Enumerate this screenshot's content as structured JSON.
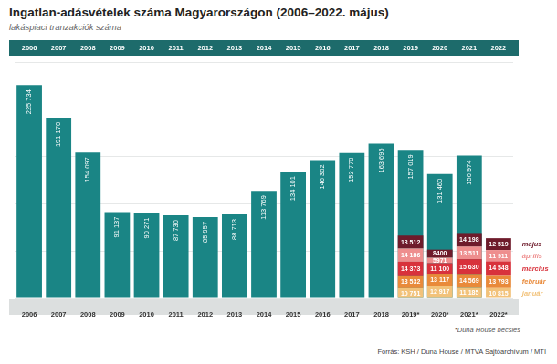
{
  "chart_data": {
    "type": "bar",
    "title": "Ingatlan-adásvételek száma Magyarországon (2006–2022. május)",
    "subtitle": "lakáspiaci tranzakciók száma",
    "categories": [
      "2006",
      "2007",
      "2008",
      "2009",
      "2010",
      "2011",
      "2012",
      "2013",
      "2014",
      "2015",
      "2016",
      "2017",
      "2018",
      "2019*",
      "2020*",
      "2021*",
      "2022*"
    ],
    "header_labels": [
      "2006",
      "2007",
      "2008",
      "2009",
      "2010",
      "2011",
      "2012",
      "2013",
      "2014",
      "2015",
      "2016",
      "2017",
      "2018",
      "2019",
      "2020",
      "2021",
      "2022"
    ],
    "series": [
      {
        "name": "január",
        "color": "#f2c27a",
        "values": [
          null,
          null,
          null,
          null,
          null,
          null,
          null,
          null,
          null,
          null,
          null,
          null,
          null,
          10751,
          12917,
          11185,
          10815
        ],
        "value_labels": [
          null,
          null,
          null,
          null,
          null,
          null,
          null,
          null,
          null,
          null,
          null,
          null,
          null,
          "10 751",
          "12 917",
          "11 185",
          "10 815"
        ]
      },
      {
        "name": "február",
        "color": "#e98a3a",
        "values": [
          null,
          null,
          null,
          null,
          null,
          null,
          null,
          null,
          null,
          null,
          null,
          null,
          null,
          13532,
          13117,
          14569,
          13793
        ],
        "value_labels": [
          null,
          null,
          null,
          null,
          null,
          null,
          null,
          null,
          null,
          null,
          null,
          null,
          null,
          "13 532",
          "13 117",
          "14 569",
          "13 793"
        ]
      },
      {
        "name": "március",
        "color": "#d8323c",
        "values": [
          null,
          null,
          null,
          null,
          null,
          null,
          null,
          null,
          null,
          null,
          null,
          null,
          null,
          14373,
          11100,
          15630,
          14548
        ],
        "value_labels": [
          null,
          null,
          null,
          null,
          null,
          null,
          null,
          null,
          null,
          null,
          null,
          null,
          null,
          "14 373",
          "11 100",
          "15 630",
          "14 548"
        ]
      },
      {
        "name": "április",
        "color": "#ee8e8e",
        "values": [
          null,
          null,
          null,
          null,
          null,
          null,
          null,
          null,
          null,
          null,
          null,
          null,
          null,
          14186,
          5971,
          13511,
          11911
        ],
        "value_labels": [
          null,
          null,
          null,
          null,
          null,
          null,
          null,
          null,
          null,
          null,
          null,
          null,
          null,
          "14 186",
          "5971",
          "13 511",
          "11 911"
        ]
      },
      {
        "name": "május",
        "color": "#6e1b2b",
        "values": [
          null,
          null,
          null,
          null,
          null,
          null,
          null,
          null,
          null,
          null,
          null,
          null,
          null,
          13512,
          8400,
          14198,
          12519
        ],
        "value_labels": [
          null,
          null,
          null,
          null,
          null,
          null,
          null,
          null,
          null,
          null,
          null,
          null,
          null,
          "13 512",
          "8400",
          "14 198",
          "12 519"
        ]
      },
      {
        "color": "#1a8585",
        "values": [
          225734,
          191170,
          154097,
          91137,
          90271,
          87730,
          85957,
          88713,
          113769,
          134101,
          146302,
          153770,
          163695,
          157019,
          131460,
          150974,
          null
        ],
        "value_labels": [
          "225 734",
          "191 170",
          "154 097",
          "91 137",
          "90 271",
          "87 730",
          "85 957",
          "88 713",
          "113 769",
          "134 101",
          "146 302",
          "153 770",
          "163 695",
          "157 019",
          "131 460",
          "150 974",
          null
        ]
      }
    ],
    "ylim": [
      0,
      250000
    ],
    "yticks": [
      0,
      50000,
      100000,
      150000,
      200000,
      250000
    ],
    "grid": true,
    "stacked": true,
    "data_labels": true,
    "tick_labels": "x",
    "note": "*Duna House becslés",
    "source": "Forrás: KSH / Duna House / MTVA Sajtóarchívum / MTI"
  }
}
